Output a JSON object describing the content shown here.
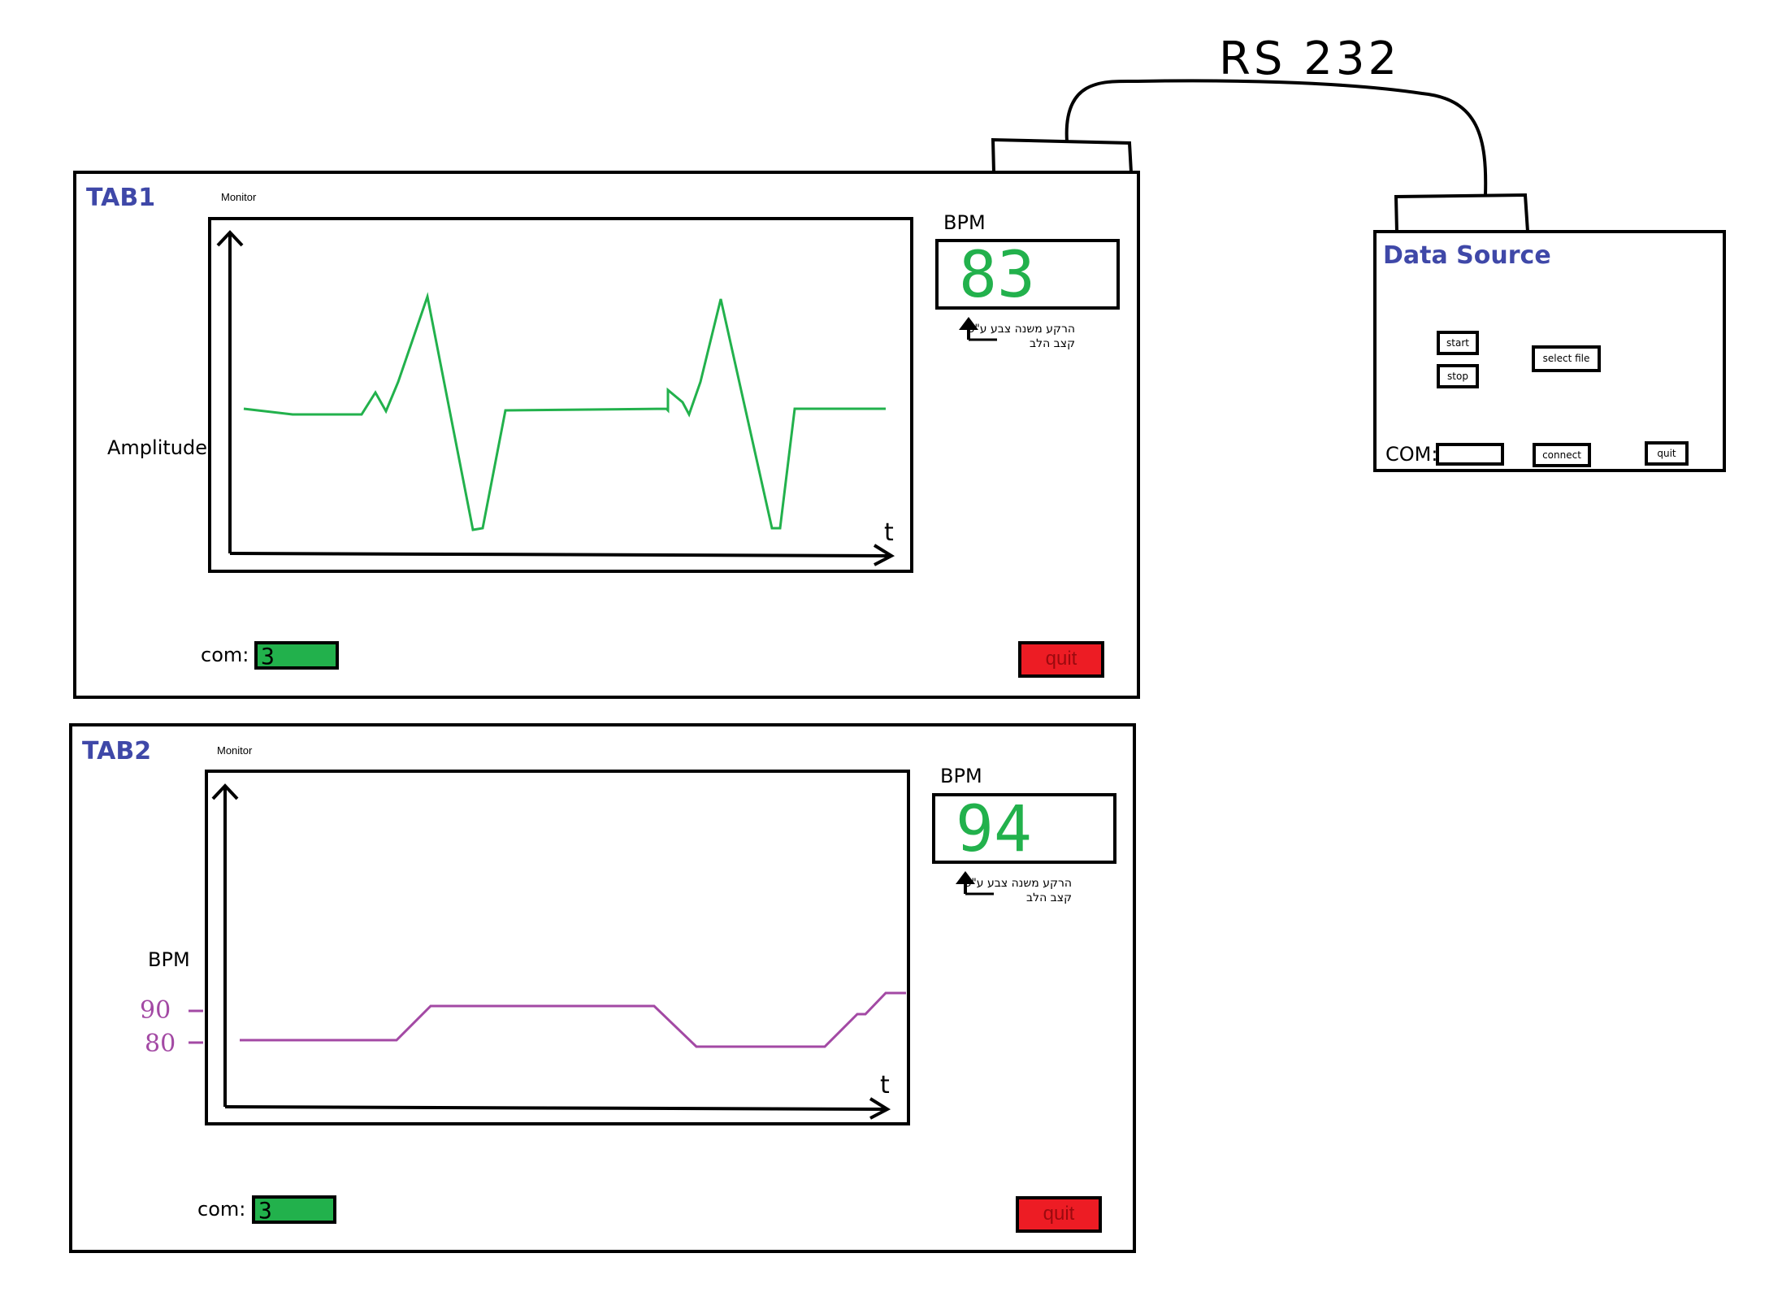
{
  "cable": {
    "label": "RS 232"
  },
  "tab1": {
    "title": "TAB1",
    "monitor_label": "Monitor",
    "y_axis_label": "Amplitude",
    "x_axis_label": "t",
    "bpm_label": "BPM",
    "bpm_value": "83",
    "bpm_note": "הרקע משנה צבע ע\"פ קצב הלב",
    "com_label": "com:",
    "com_value": "3",
    "quit_label": "quit",
    "colors": {
      "trace": "#22b14c",
      "com_field": "#22b14c",
      "quit": "#ed1c24"
    }
  },
  "tab2": {
    "title": "TAB2",
    "monitor_label": "Monitor",
    "y_axis_label": "BPM",
    "x_axis_label": "t",
    "y_tick_90": "90",
    "y_tick_80": "80",
    "bpm_label": "BPM",
    "bpm_value": "94",
    "bpm_note": "הרקע משנה צבע ע\"פ קצב הלב",
    "com_label": "com:",
    "com_value": "3",
    "quit_label": "quit",
    "colors": {
      "trace": "#a349a4",
      "ticks": "#a349a4"
    }
  },
  "data_source": {
    "title": "Data Source",
    "start_label": "start",
    "stop_label": "stop",
    "select_file_label": "select file",
    "com_label": "COM:",
    "com_value": "",
    "connect_label": "connect",
    "quit_label": "quit"
  }
}
